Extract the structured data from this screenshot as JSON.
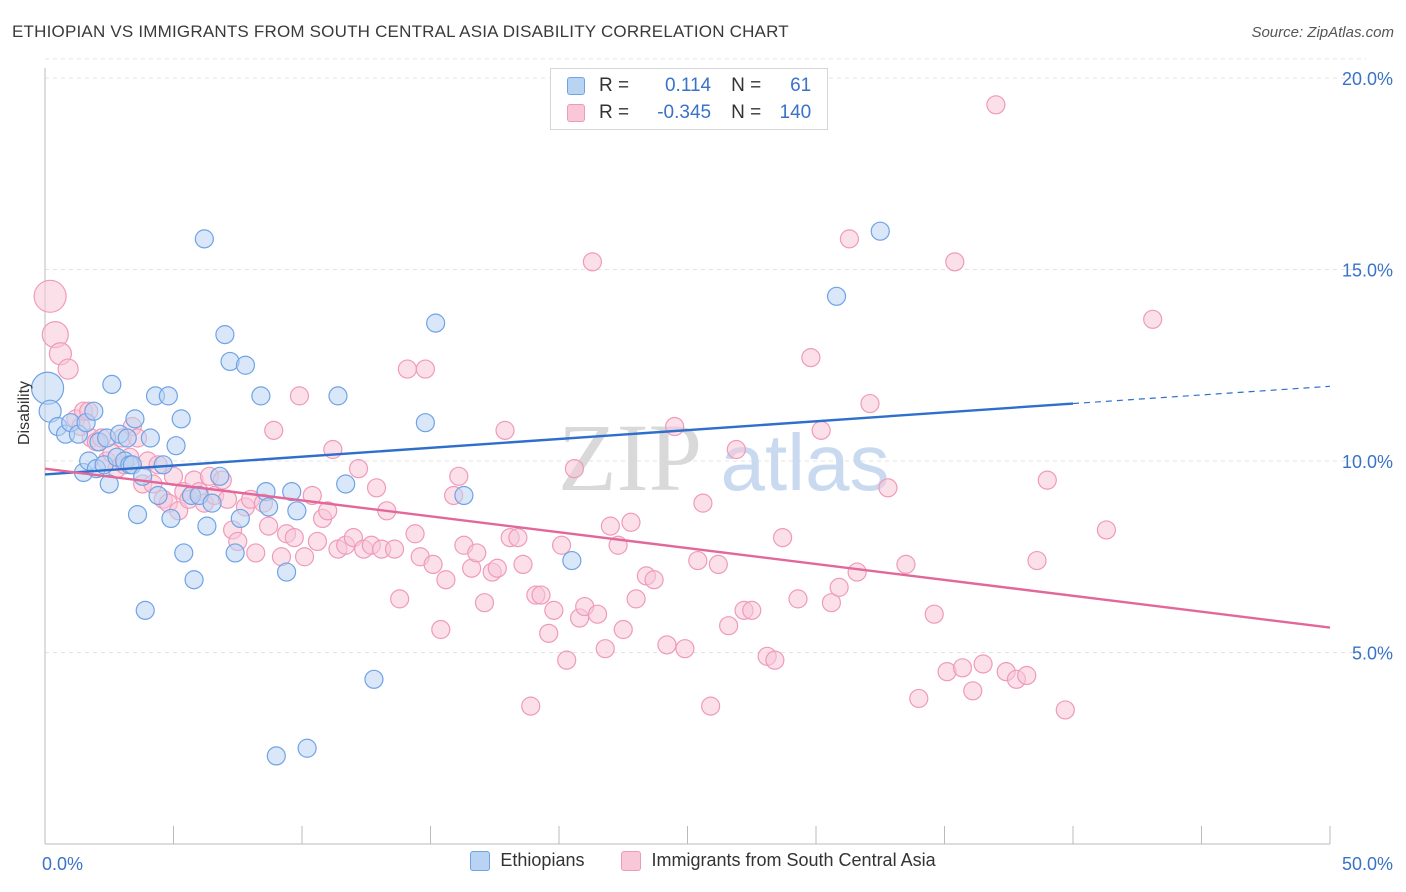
{
  "title": "ETHIOPIAN VS IMMIGRANTS FROM SOUTH CENTRAL ASIA DISABILITY CORRELATION CHART",
  "source": "Source: ZipAtlas.com",
  "watermark": {
    "zip": "ZIP",
    "atlas": "atlas"
  },
  "legend_top": {
    "rows": [
      {
        "r_label": "R =",
        "r_value": "0.114",
        "n_label": "N =",
        "n_value": "61",
        "color": "#6fa3e6",
        "fill": "#b9d3f3"
      },
      {
        "r_label": "R =",
        "r_value": "-0.345",
        "n_label": "N =",
        "n_value": "140",
        "color": "#f09ab9",
        "fill": "#f8c7d8"
      }
    ]
  },
  "chart_data": {
    "type": "scatter",
    "xlabel": "",
    "ylabel": "Disability",
    "xlim": [
      0,
      50
    ],
    "ylim": [
      0,
      20
    ],
    "x_tick_labels": [
      "0.0%",
      "50.0%"
    ],
    "y_ticks": [
      5,
      10,
      15,
      20
    ],
    "y_tick_labels": [
      "5.0%",
      "10.0%",
      "15.0%",
      "20.0%"
    ],
    "grid": "horizontal dashed",
    "legend_placement": "bottom",
    "series": [
      {
        "name": "Ethiopians",
        "color": "#6fa3e6",
        "fill": "#b9d3f3",
        "line_color": "#2e6fcc",
        "trend": {
          "x0": 0,
          "y0": 9.65,
          "x1": 40,
          "y1": 11.5,
          "dash_to": 50,
          "dash_y": 11.95
        },
        "points": [
          [
            0.1,
            11.9,
            16
          ],
          [
            0.2,
            11.3,
            11
          ],
          [
            0.5,
            10.9,
            9
          ],
          [
            0.8,
            10.7,
            9
          ],
          [
            1.0,
            11.0,
            9
          ],
          [
            1.3,
            10.7,
            9
          ],
          [
            1.5,
            9.7,
            9
          ],
          [
            1.6,
            11.0,
            9
          ],
          [
            1.7,
            10.0,
            9
          ],
          [
            1.9,
            11.3,
            9
          ],
          [
            2.1,
            10.5,
            9
          ],
          [
            2.0,
            9.8,
            9
          ],
          [
            2.3,
            9.9,
            9
          ],
          [
            2.4,
            10.6,
            9
          ],
          [
            2.5,
            9.4,
            9
          ],
          [
            2.6,
            12.0,
            9
          ],
          [
            2.8,
            10.1,
            9
          ],
          [
            2.9,
            10.7,
            9
          ],
          [
            3.1,
            10.0,
            9
          ],
          [
            3.2,
            10.6,
            9
          ],
          [
            3.3,
            9.9,
            9
          ],
          [
            3.4,
            9.9,
            9
          ],
          [
            3.5,
            11.1,
            9
          ],
          [
            3.6,
            8.6,
            9
          ],
          [
            3.8,
            9.6,
            9
          ],
          [
            3.9,
            6.1,
            9
          ],
          [
            4.1,
            10.6,
            9
          ],
          [
            4.3,
            11.7,
            9
          ],
          [
            4.4,
            9.1,
            9
          ],
          [
            4.6,
            9.9,
            9
          ],
          [
            4.8,
            11.7,
            9
          ],
          [
            4.9,
            8.5,
            9
          ],
          [
            5.1,
            10.4,
            9
          ],
          [
            5.3,
            11.1,
            9
          ],
          [
            5.4,
            7.6,
            9
          ],
          [
            5.7,
            9.1,
            9
          ],
          [
            5.8,
            6.9,
            9
          ],
          [
            6.0,
            9.1,
            9
          ],
          [
            6.2,
            15.8,
            9
          ],
          [
            6.3,
            8.3,
            9
          ],
          [
            6.5,
            8.9,
            9
          ],
          [
            6.8,
            9.6,
            9
          ],
          [
            7.0,
            13.3,
            9
          ],
          [
            7.2,
            12.6,
            9
          ],
          [
            7.4,
            7.6,
            9
          ],
          [
            7.6,
            8.5,
            9
          ],
          [
            7.8,
            12.5,
            9
          ],
          [
            8.4,
            11.7,
            9
          ],
          [
            8.6,
            9.2,
            9
          ],
          [
            8.7,
            8.8,
            9
          ],
          [
            9.0,
            2.3,
            9
          ],
          [
            9.4,
            7.1,
            9
          ],
          [
            9.6,
            9.2,
            9
          ],
          [
            9.8,
            8.7,
            9
          ],
          [
            10.2,
            2.5,
            9
          ],
          [
            11.4,
            11.7,
            9
          ],
          [
            11.7,
            9.4,
            9
          ],
          [
            12.8,
            4.3,
            9
          ],
          [
            14.8,
            11.0,
            9
          ],
          [
            15.2,
            13.6,
            9
          ],
          [
            16.3,
            9.1,
            9
          ],
          [
            20.5,
            7.4,
            9
          ],
          [
            30.8,
            14.3,
            9
          ],
          [
            32.5,
            16.0,
            9
          ]
        ]
      },
      {
        "name": "Immigrants from South Central Asia",
        "color": "#f09ab9",
        "fill": "#f8c7d8",
        "line_color": "#e2679a",
        "trend": {
          "x0": 0,
          "y0": 9.8,
          "x1": 50,
          "y1": 5.65
        },
        "points": [
          [
            0.2,
            14.3,
            16
          ],
          [
            0.4,
            13.3,
            13
          ],
          [
            0.6,
            12.8,
            11
          ],
          [
            0.9,
            12.4,
            10
          ],
          [
            1.2,
            11.1,
            9
          ],
          [
            1.4,
            10.9,
            9
          ],
          [
            1.5,
            11.3,
            9
          ],
          [
            1.7,
            11.3,
            9
          ],
          [
            1.8,
            10.6,
            9
          ],
          [
            2.0,
            10.5,
            9
          ],
          [
            2.2,
            10.6,
            9
          ],
          [
            2.4,
            10.0,
            9
          ],
          [
            2.6,
            10.2,
            9
          ],
          [
            2.8,
            9.8,
            9
          ],
          [
            3.0,
            10.6,
            9
          ],
          [
            3.1,
            9.9,
            9
          ],
          [
            3.3,
            10.1,
            9
          ],
          [
            3.4,
            10.9,
            9
          ],
          [
            3.6,
            10.6,
            9
          ],
          [
            3.8,
            9.4,
            9
          ],
          [
            4.0,
            10.0,
            9
          ],
          [
            4.2,
            9.4,
            9
          ],
          [
            4.4,
            9.9,
            9
          ],
          [
            4.6,
            9.0,
            9
          ],
          [
            4.8,
            8.9,
            9
          ],
          [
            5.0,
            9.6,
            9
          ],
          [
            5.2,
            8.7,
            9
          ],
          [
            5.4,
            9.2,
            9
          ],
          [
            5.6,
            9.0,
            9
          ],
          [
            5.8,
            9.5,
            9
          ],
          [
            6.0,
            9.2,
            9
          ],
          [
            6.2,
            8.9,
            9
          ],
          [
            6.4,
            9.6,
            9
          ],
          [
            6.6,
            9.1,
            9
          ],
          [
            6.9,
            9.5,
            9
          ],
          [
            7.1,
            9.0,
            9
          ],
          [
            7.3,
            8.2,
            9
          ],
          [
            7.5,
            7.9,
            9
          ],
          [
            7.8,
            8.8,
            9
          ],
          [
            8.0,
            9.0,
            9
          ],
          [
            8.2,
            7.6,
            9
          ],
          [
            8.5,
            8.9,
            9
          ],
          [
            8.7,
            8.3,
            9
          ],
          [
            8.9,
            10.8,
            9
          ],
          [
            9.2,
            7.5,
            9
          ],
          [
            9.4,
            8.1,
            9
          ],
          [
            9.7,
            8.0,
            9
          ],
          [
            9.9,
            11.7,
            9
          ],
          [
            10.1,
            7.5,
            9
          ],
          [
            10.4,
            9.1,
            9
          ],
          [
            10.6,
            7.9,
            9
          ],
          [
            10.8,
            8.5,
            9
          ],
          [
            11.0,
            8.7,
            9
          ],
          [
            11.2,
            10.3,
            9
          ],
          [
            11.4,
            7.7,
            9
          ],
          [
            11.7,
            7.8,
            9
          ],
          [
            12.0,
            8.0,
            9
          ],
          [
            12.2,
            9.8,
            9
          ],
          [
            12.4,
            7.7,
            9
          ],
          [
            12.7,
            7.8,
            9
          ],
          [
            12.9,
            9.3,
            9
          ],
          [
            13.1,
            7.7,
            9
          ],
          [
            13.3,
            8.7,
            9
          ],
          [
            13.6,
            7.7,
            9
          ],
          [
            13.8,
            6.4,
            9
          ],
          [
            14.1,
            12.4,
            9
          ],
          [
            14.4,
            8.1,
            9
          ],
          [
            14.6,
            7.5,
            9
          ],
          [
            14.8,
            12.4,
            9
          ],
          [
            15.1,
            7.3,
            9
          ],
          [
            15.4,
            5.6,
            9
          ],
          [
            15.6,
            6.9,
            9
          ],
          [
            15.9,
            9.1,
            9
          ],
          [
            16.1,
            9.6,
            9
          ],
          [
            16.3,
            7.8,
            9
          ],
          [
            16.6,
            7.2,
            9
          ],
          [
            16.8,
            7.6,
            9
          ],
          [
            17.1,
            6.3,
            9
          ],
          [
            17.4,
            7.1,
            9
          ],
          [
            17.6,
            7.2,
            9
          ],
          [
            17.9,
            10.8,
            9
          ],
          [
            18.1,
            8.0,
            9
          ],
          [
            18.4,
            8.0,
            9
          ],
          [
            18.6,
            7.3,
            9
          ],
          [
            18.9,
            3.6,
            9
          ],
          [
            19.1,
            6.5,
            9
          ],
          [
            19.3,
            6.5,
            9
          ],
          [
            19.6,
            5.5,
            9
          ],
          [
            19.8,
            6.1,
            9
          ],
          [
            20.1,
            7.8,
            9
          ],
          [
            20.3,
            4.8,
            9
          ],
          [
            20.6,
            9.8,
            9
          ],
          [
            20.8,
            5.9,
            9
          ],
          [
            21.0,
            6.2,
            9
          ],
          [
            21.3,
            15.2,
            9
          ],
          [
            21.5,
            6.0,
            9
          ],
          [
            21.8,
            5.1,
            9
          ],
          [
            22.0,
            8.3,
            9
          ],
          [
            22.3,
            7.8,
            9
          ],
          [
            22.5,
            5.6,
            9
          ],
          [
            22.8,
            8.4,
            9
          ],
          [
            23.0,
            6.4,
            9
          ],
          [
            23.4,
            7.0,
            9
          ],
          [
            23.7,
            6.9,
            9
          ],
          [
            24.2,
            5.2,
            9
          ],
          [
            24.5,
            10.9,
            9
          ],
          [
            24.9,
            5.1,
            9
          ],
          [
            25.4,
            7.4,
            9
          ],
          [
            25.6,
            8.9,
            9
          ],
          [
            25.9,
            3.6,
            9
          ],
          [
            26.2,
            7.3,
            9
          ],
          [
            26.6,
            5.7,
            9
          ],
          [
            26.9,
            10.3,
            9
          ],
          [
            27.2,
            6.1,
            9
          ],
          [
            27.5,
            6.1,
            9
          ],
          [
            28.1,
            4.9,
            9
          ],
          [
            28.4,
            4.8,
            9
          ],
          [
            28.7,
            8.0,
            9
          ],
          [
            29.3,
            6.4,
            9
          ],
          [
            29.8,
            12.7,
            9
          ],
          [
            30.2,
            10.8,
            9
          ],
          [
            30.6,
            6.3,
            9
          ],
          [
            30.9,
            6.7,
            9
          ],
          [
            31.3,
            15.8,
            9
          ],
          [
            31.6,
            7.1,
            9
          ],
          [
            32.1,
            11.5,
            9
          ],
          [
            32.8,
            9.3,
            9
          ],
          [
            33.5,
            7.3,
            9
          ],
          [
            34.0,
            3.8,
            9
          ],
          [
            34.6,
            6.0,
            9
          ],
          [
            35.1,
            4.5,
            9
          ],
          [
            35.4,
            15.2,
            9
          ],
          [
            35.7,
            4.6,
            9
          ],
          [
            36.1,
            4.0,
            9
          ],
          [
            36.5,
            4.7,
            9
          ],
          [
            37.0,
            19.3,
            9
          ],
          [
            37.4,
            4.5,
            9
          ],
          [
            37.8,
            4.3,
            9
          ],
          [
            38.2,
            4.4,
            9
          ],
          [
            38.6,
            7.4,
            9
          ],
          [
            39.0,
            9.5,
            9
          ],
          [
            39.7,
            3.5,
            9
          ],
          [
            41.3,
            8.2,
            9
          ],
          [
            43.1,
            13.7,
            9
          ]
        ]
      }
    ]
  }
}
